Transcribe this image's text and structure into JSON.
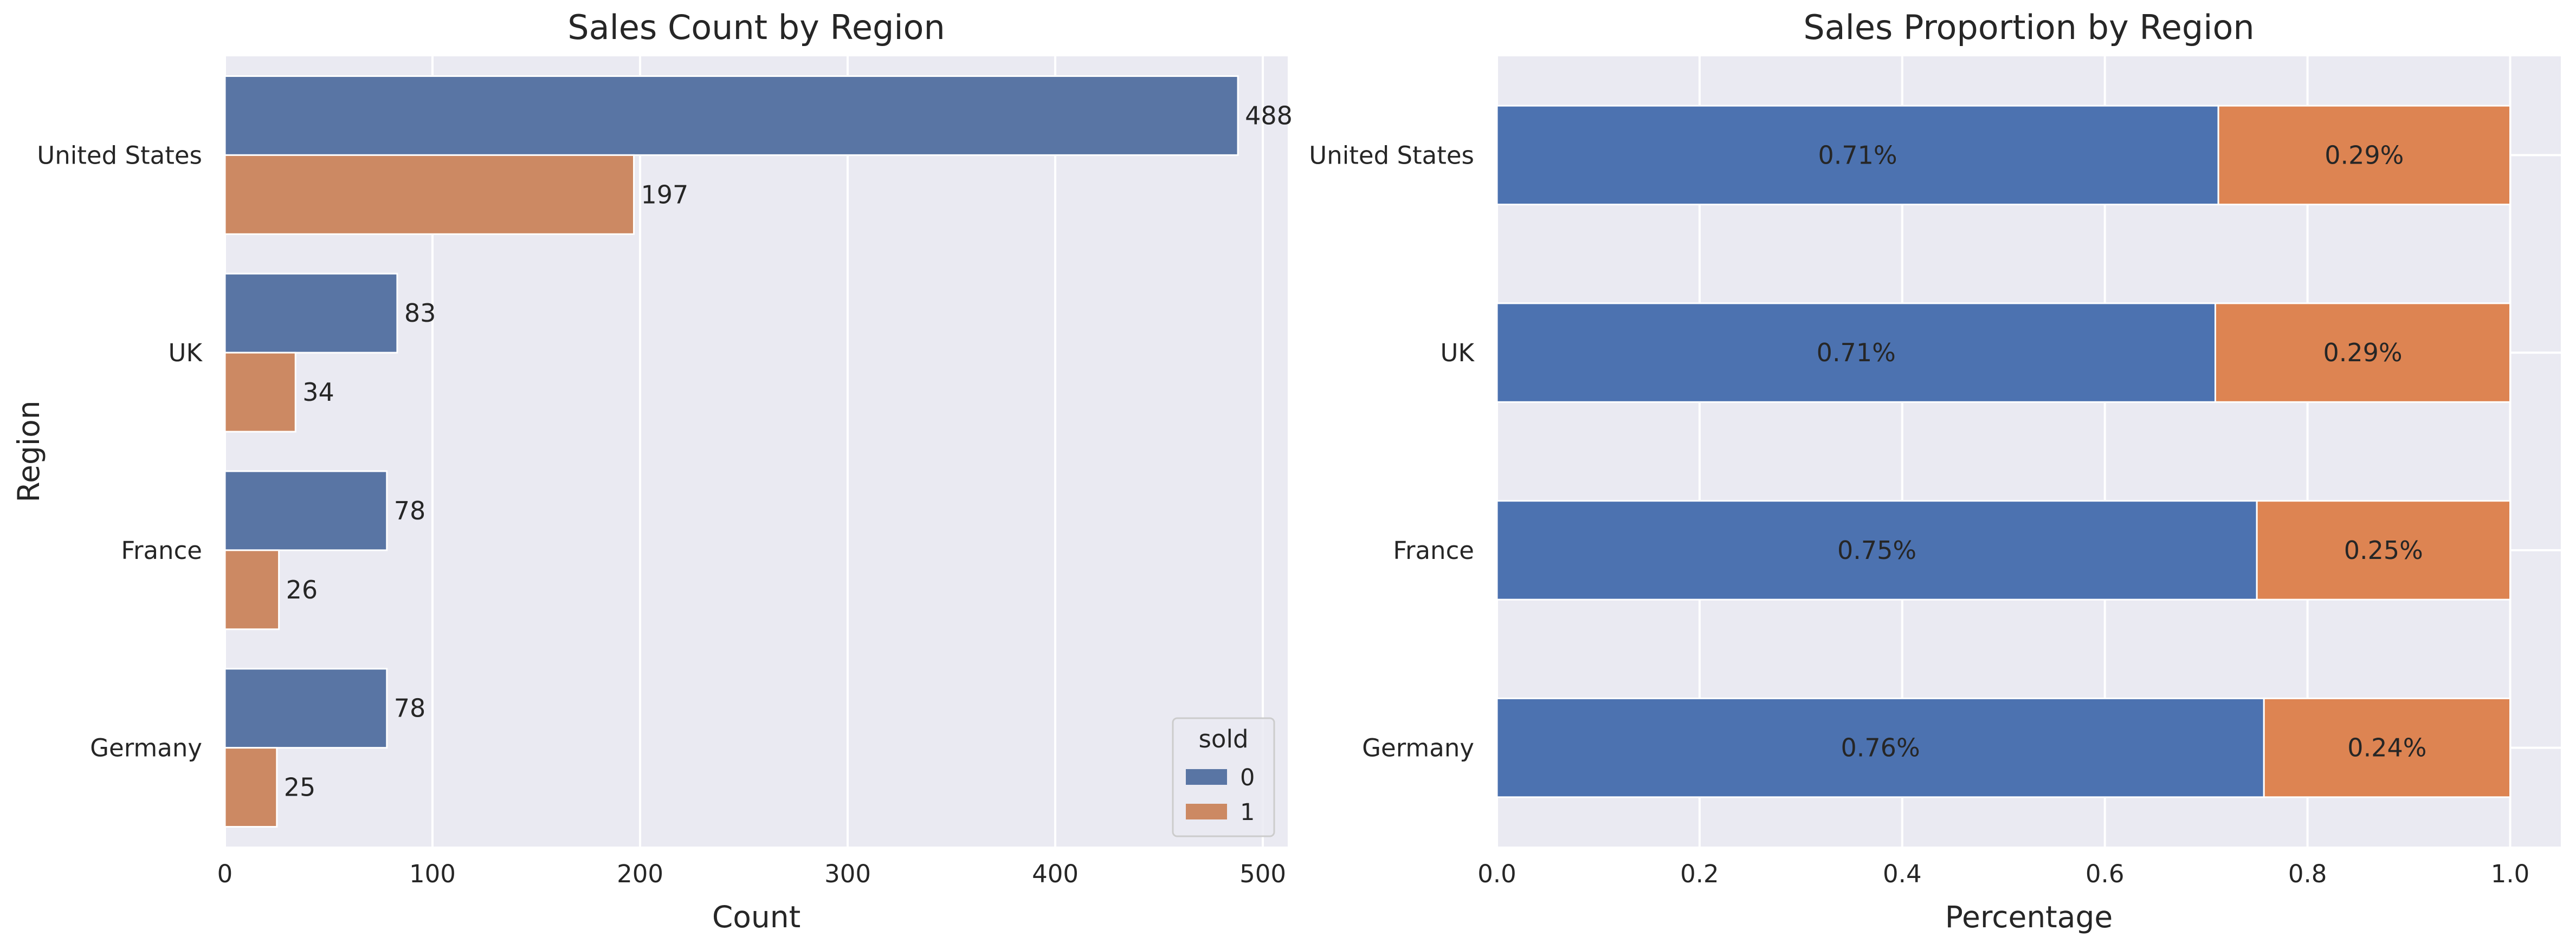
{
  "colors": {
    "background": "#eaeaf2",
    "grid": "#ffffff",
    "sold_0": "#4c72b0",
    "sold_1": "#dd8452",
    "sold_0_left": "#5975a4",
    "sold_1_left": "#cc8963",
    "text": "#262626"
  },
  "chart_data": [
    {
      "type": "bar",
      "orientation": "horizontal",
      "title": "Sales Count by Region",
      "xlabel": "Count",
      "ylabel": "Region",
      "categories": [
        "United States",
        "UK",
        "France",
        "Germany"
      ],
      "series": [
        {
          "name": "0",
          "values": [
            488,
            83,
            78,
            78
          ]
        },
        {
          "name": "1",
          "values": [
            197,
            34,
            26,
            25
          ]
        }
      ],
      "data_labels": [
        [
          "488",
          "83",
          "78",
          "78"
        ],
        [
          "197",
          "34",
          "26",
          "25"
        ]
      ],
      "xlim": [
        0,
        512
      ],
      "xticks": [
        0,
        100,
        200,
        300,
        400,
        500
      ],
      "xtick_labels": [
        "0",
        "100",
        "200",
        "300",
        "400",
        "500"
      ],
      "grid": true,
      "legend": {
        "title": "sold",
        "placement": "lower-right",
        "entries": [
          "0",
          "1"
        ]
      }
    },
    {
      "type": "bar",
      "orientation": "horizontal",
      "stacked": true,
      "title": "Sales Proportion by Region",
      "xlabel": "Percentage",
      "ylabel": "",
      "categories": [
        "United States",
        "UK",
        "France",
        "Germany"
      ],
      "series": [
        {
          "name": "0",
          "values": [
            0.712,
            0.709,
            0.75,
            0.757
          ]
        },
        {
          "name": "1",
          "values": [
            0.288,
            0.291,
            0.25,
            0.243
          ]
        }
      ],
      "data_labels": [
        [
          "0.71%",
          "0.71%",
          "0.75%",
          "0.76%"
        ],
        [
          "0.29%",
          "0.29%",
          "0.25%",
          "0.24%"
        ]
      ],
      "xlim": [
        0,
        1.05
      ],
      "xticks": [
        0,
        0.2,
        0.4,
        0.6,
        0.8,
        1.0
      ],
      "xtick_labels": [
        "0.0",
        "0.2",
        "0.4",
        "0.6",
        "0.8",
        "1.0"
      ],
      "grid": true
    }
  ]
}
